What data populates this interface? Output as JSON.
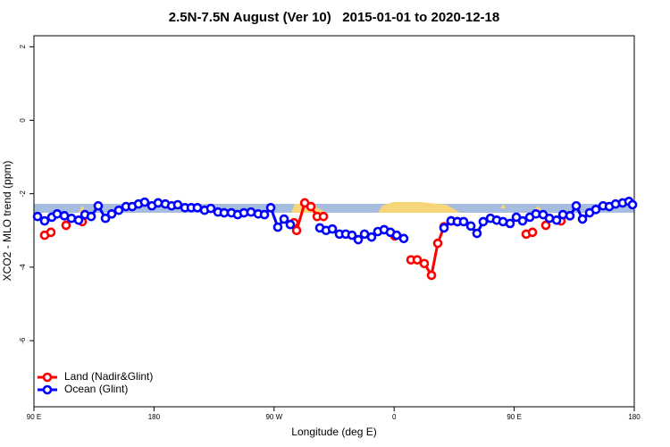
{
  "chart_data": {
    "type": "line",
    "title": "2.5N-7.5N August (Ver 10)   2015-01-01 to 2020-12-18",
    "xlabel": "Longitude (deg E)",
    "ylabel": "XCO2 - MLO trend (ppm)",
    "xlim": [
      90,
      540
    ],
    "ylim": [
      -7.8,
      2.3
    ],
    "xticks": [
      {
        "value": 90,
        "label": "90 E"
      },
      180,
      {
        "value": 270,
        "label": "90 W"
      },
      {
        "value": 360,
        "label": "0"
      },
      {
        "value": 450,
        "label": "90 E"
      },
      {
        "value": 540,
        "label": "180"
      }
    ],
    "yticks": [
      -6,
      -4,
      -2,
      0,
      2
    ],
    "legend": "bottomleft",
    "series": [
      {
        "name": "Land (Nadir&Glint)",
        "color": "#ff0000",
        "x": [
          98.0,
          102.7,
          108,
          114.1,
          120,
          126.2,
          200,
          284.9,
          286.9,
          293.0,
          297.6,
          302.3,
          307.0,
          330,
          360.5,
          366,
          372.6,
          377.3,
          382.6,
          388.0,
          392.7,
          397.4,
          402.7,
          407.4,
          430,
          459.0,
          463.7,
          468,
          473.7,
          480,
          485.1
        ],
        "values": [
          -3.13,
          -3.05,
          null,
          -2.86,
          null,
          -2.76,
          null,
          -2.79,
          -3.0,
          -2.25,
          -2.35,
          -2.62,
          -2.62,
          null,
          -3.15,
          null,
          -3.8,
          -3.8,
          -3.9,
          -4.22,
          -3.35,
          -2.9,
          -2.74,
          -2.76,
          null,
          -3.1,
          -3.05,
          null,
          -2.86,
          null,
          -2.74
        ]
      },
      {
        "name": "Ocean (Glint)",
        "color": "#0000ff",
        "x": [
          92.7,
          98.0,
          103.4,
          107.4,
          112.8,
          118.1,
          123.5,
          128.2,
          132.9,
          138.2,
          143.6,
          148.3,
          153.6,
          159.0,
          163.7,
          168.4,
          173.0,
          178.4,
          183.1,
          188.5,
          193.2,
          197.8,
          203.2,
          207.9,
          212.5,
          217.9,
          222.6,
          228.0,
          232.6,
          238.0,
          242.7,
          247.4,
          252.7,
          258.1,
          262.8,
          267.5,
          272.8,
          277.5,
          282.2,
          300,
          304.3,
          309.0,
          313.7,
          319.0,
          323.7,
          328.4,
          333.1,
          337.8,
          343.1,
          347.8,
          352.5,
          357.2,
          361.9,
          367.2,
          380,
          397.4,
          402.7,
          407.4,
          412.1,
          417.5,
          422.1,
          426.8,
          432.2,
          436.9,
          441.6,
          446.9,
          451.6,
          456.3,
          461.7,
          466.3,
          471.7,
          476.4,
          481.8,
          486.5,
          491.8,
          496.5,
          501.2,
          506.5,
          511.2,
          516.6,
          521.3,
          526.0,
          531.3,
          536.0,
          538.7
        ],
        "values": [
          -2.62,
          -2.74,
          -2.64,
          -2.55,
          -2.6,
          -2.67,
          -2.72,
          -2.57,
          -2.62,
          -2.33,
          -2.67,
          -2.55,
          -2.45,
          -2.35,
          -2.35,
          -2.28,
          -2.23,
          -2.33,
          -2.25,
          -2.28,
          -2.33,
          -2.3,
          -2.38,
          -2.38,
          -2.38,
          -2.45,
          -2.4,
          -2.5,
          -2.52,
          -2.52,
          -2.57,
          -2.52,
          -2.5,
          -2.55,
          -2.57,
          -2.38,
          -2.91,
          -2.69,
          -2.84,
          null,
          -2.93,
          -3.0,
          -2.96,
          -3.1,
          -3.1,
          -3.13,
          -3.25,
          -3.1,
          -3.18,
          -3.03,
          -2.98,
          -3.05,
          -3.13,
          -3.22,
          null,
          -2.93,
          -2.74,
          -2.76,
          -2.76,
          -2.88,
          -3.08,
          -2.76,
          -2.67,
          -2.72,
          -2.76,
          -2.81,
          -2.64,
          -2.74,
          -2.64,
          -2.55,
          -2.57,
          -2.67,
          -2.72,
          -2.57,
          -2.6,
          -2.33,
          -2.69,
          -2.52,
          -2.43,
          -2.33,
          -2.35,
          -2.28,
          -2.25,
          -2.21,
          -2.3
        ]
      }
    ]
  }
}
